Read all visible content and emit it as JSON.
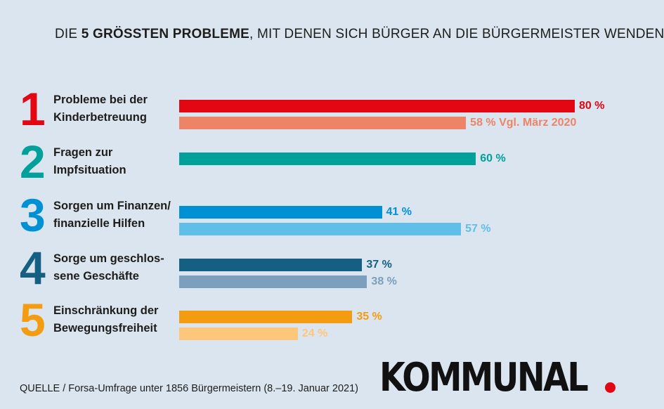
{
  "header": {
    "title_pre": "DIE ",
    "title_bold": "5 GRÖSSTEN PROBLEME",
    "title_post": ", MIT DENEN SICH BÜRGER AN DIE BÜRGERMEISTER WENDEN"
  },
  "chart_data": {
    "type": "bar",
    "orientation": "horizontal",
    "title": "DIE 5 GRÖSSTEN PROBLEME, MIT DENEN SICH BÜRGER AN DIE BÜRGERMEISTER WENDEN",
    "xlim": [
      0,
      100
    ],
    "grid": false,
    "items": [
      {
        "rank": "1",
        "label_line1": "Probleme bei der",
        "label_line2": "Kinderbetreuung",
        "color": "#e30613",
        "bars": [
          {
            "value": 80,
            "label": "80 %",
            "color": "#e30613",
            "text_color": "#e30613"
          },
          {
            "value": 58,
            "label": "58 % Vgl. März 2020",
            "color": "#ee8466",
            "text_color": "#ee8466"
          }
        ]
      },
      {
        "rank": "2",
        "label_line1": "Fragen zur",
        "label_line2": "Impfsituation",
        "color": "#00a19a",
        "bars": [
          {
            "value": 60,
            "label": "60 %",
            "color": "#00a19a",
            "text_color": "#00a19a"
          }
        ]
      },
      {
        "rank": "3",
        "label_line1": "Sorgen um Finanzen/",
        "label_line2": "finanzielle Hilfen",
        "color": "#0090d4",
        "bars": [
          {
            "value": 41,
            "label": "41 %",
            "color": "#0090d4",
            "text_color": "#0090d4"
          },
          {
            "value": 57,
            "label": "57 %",
            "color": "#5fbfe8",
            "text_color": "#5fbfe8"
          }
        ]
      },
      {
        "rank": "4",
        "label_line1": "Sorge um geschlos-",
        "label_line2": "sene Geschäfte",
        "color": "#155f82",
        "bars": [
          {
            "value": 37,
            "label": "37 %",
            "color": "#155f82",
            "text_color": "#155f82"
          },
          {
            "value": 38,
            "label": "38 %",
            "color": "#7b9fbd",
            "text_color": "#7b9fbd"
          }
        ]
      },
      {
        "rank": "5",
        "label_line1": "Einschränkung der",
        "label_line2": "Bewegungsfreiheit",
        "color": "#f39c12",
        "bars": [
          {
            "value": 35,
            "label": "35 %",
            "color": "#f39c12",
            "text_color": "#f39c12"
          },
          {
            "value": 24,
            "label": "24 %",
            "color": "#fcc77a",
            "text_color": "#fcc77a"
          }
        ]
      }
    ]
  },
  "footer": {
    "source": "QUELLE / Forsa-Umfrage unter 1856 Bürgermeistern (8.–19. Januar 2021)",
    "logo_text": "KOMMUNAL"
  }
}
